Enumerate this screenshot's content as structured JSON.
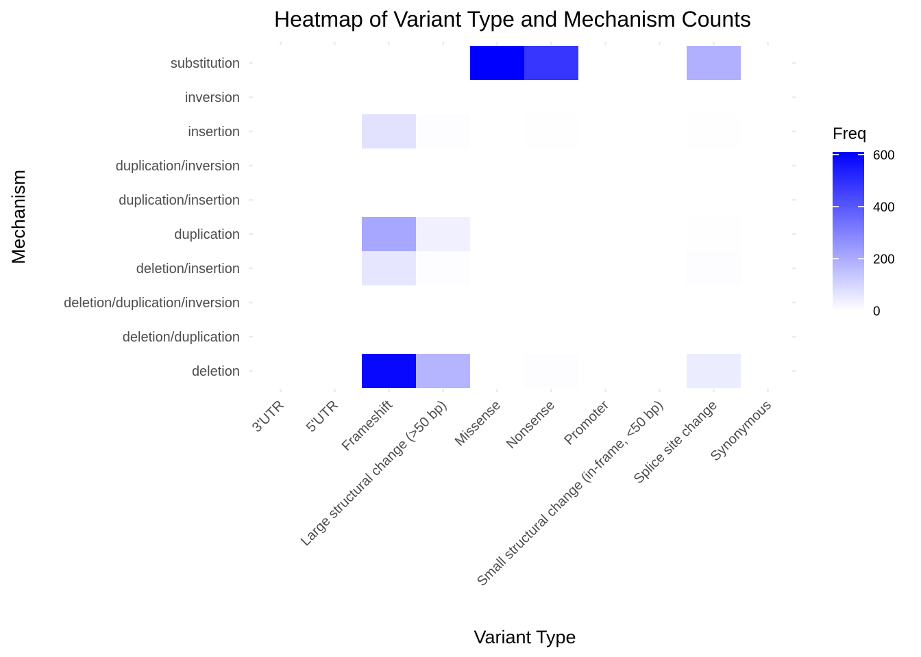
{
  "chart_data": {
    "type": "heatmap",
    "title": "Heatmap of Variant Type and Mechanism Counts",
    "xlabel": "Variant Type",
    "ylabel": "Mechanism",
    "x_categories": [
      "3'UTR",
      "5'UTR",
      "Frameshift",
      "Large structural change (>50 bp)",
      "Missense",
      "Nonsense",
      "Promoter",
      "Small structural change (in-frame, <50 bp)",
      "Splice site change",
      "Synonymous"
    ],
    "y_categories": [
      "deletion",
      "deletion/duplication",
      "deletion/duplication/inversion",
      "deletion/insertion",
      "duplication",
      "duplication/insertion",
      "duplication/inversion",
      "insertion",
      "inversion",
      "substitution"
    ],
    "cells": [
      {
        "x": "Frameshift",
        "y": "deletion",
        "value": 590
      },
      {
        "x": "Large structural change (>50 bp)",
        "y": "deletion",
        "value": 180
      },
      {
        "x": "Nonsense",
        "y": "deletion",
        "value": 5
      },
      {
        "x": "Splice site change",
        "y": "deletion",
        "value": 45
      },
      {
        "x": "Frameshift",
        "y": "deletion/insertion",
        "value": 60
      },
      {
        "x": "Large structural change (>50 bp)",
        "y": "deletion/insertion",
        "value": 5
      },
      {
        "x": "Splice site change",
        "y": "deletion/insertion",
        "value": 5
      },
      {
        "x": "Frameshift",
        "y": "duplication",
        "value": 210
      },
      {
        "x": "Large structural change (>50 bp)",
        "y": "duplication",
        "value": 35
      },
      {
        "x": "Splice site change",
        "y": "duplication",
        "value": 3
      },
      {
        "x": "Frameshift",
        "y": "insertion",
        "value": 70
      },
      {
        "x": "Large structural change (>50 bp)",
        "y": "insertion",
        "value": 5
      },
      {
        "x": "Nonsense",
        "y": "insertion",
        "value": 2
      },
      {
        "x": "Splice site change",
        "y": "insertion",
        "value": 3
      },
      {
        "x": "Missense",
        "y": "substitution",
        "value": 610
      },
      {
        "x": "Nonsense",
        "y": "substitution",
        "value": 480
      },
      {
        "x": "Splice site change",
        "y": "substitution",
        "value": 190
      }
    ],
    "color_scale": {
      "low": "#ffffff",
      "high": "#0000ff",
      "min": 0,
      "max": 610
    },
    "legend": {
      "title": "Freq",
      "ticks": [
        0,
        200,
        400,
        600
      ],
      "position": "right"
    },
    "grid": false
  }
}
